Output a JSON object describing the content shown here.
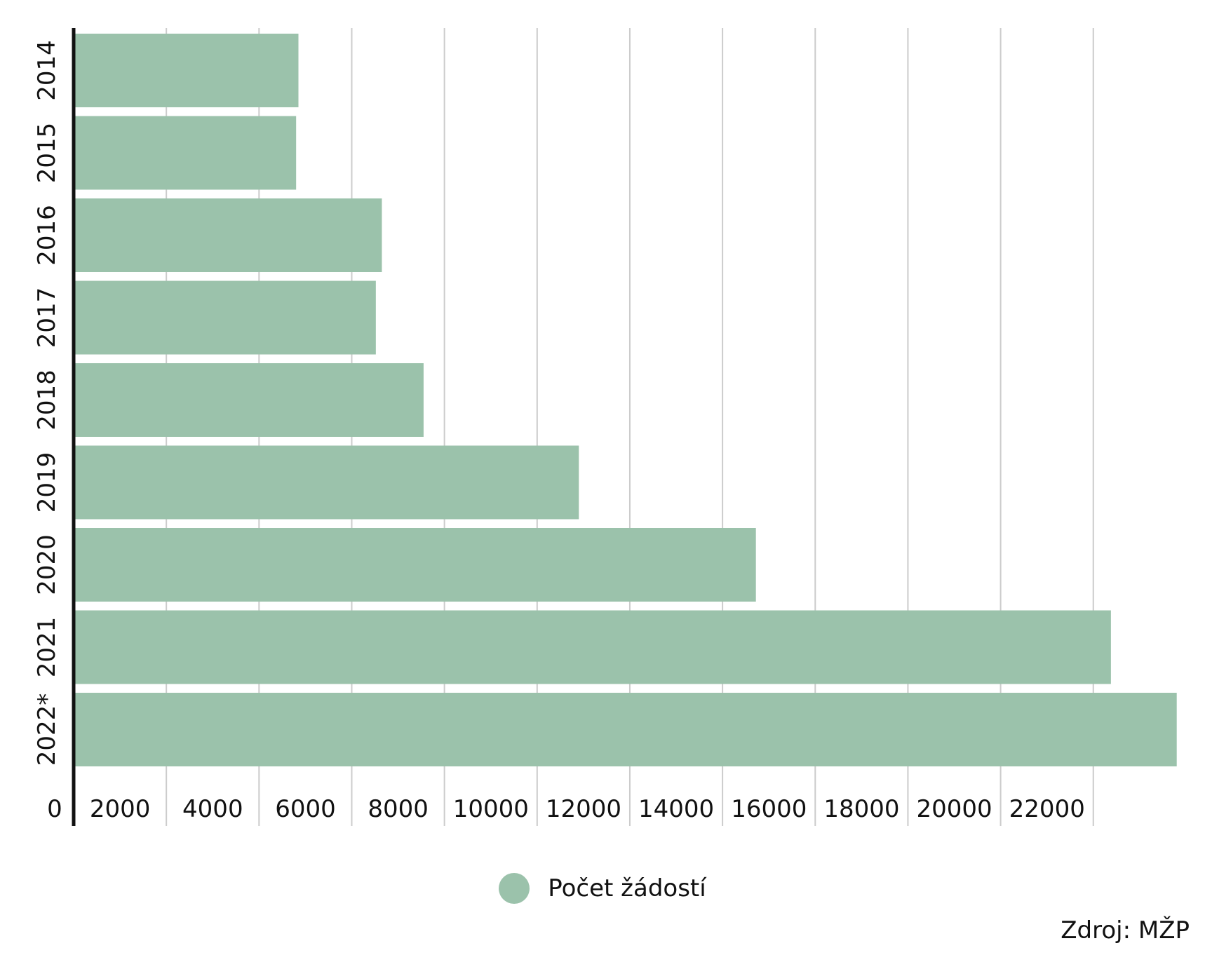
{
  "chart_data": {
    "type": "bar",
    "orientation": "horizontal",
    "categories": [
      "2014",
      "2015",
      "2016",
      "2017",
      "2018",
      "2019",
      "2020",
      "2021",
      "2022*"
    ],
    "series": [
      {
        "name": "Počet žádostí",
        "values": [
          4850,
          4800,
          6650,
          6520,
          7550,
          10900,
          14720,
          22380,
          23800
        ]
      }
    ],
    "x_ticks": [
      "0",
      "2000",
      "4000",
      "6000",
      "8000",
      "10000",
      "12000",
      "14000",
      "16000",
      "18000",
      "20000",
      "22000"
    ],
    "xlim": [
      0,
      24000
    ],
    "grid": true,
    "legend_position": "bottom"
  },
  "colors": {
    "bar": "#9bc2ab",
    "grid": "#cccccc",
    "axis": "#111111"
  },
  "legend": {
    "label": "Počet žádostí"
  },
  "source": "Zdroj: MŽP"
}
